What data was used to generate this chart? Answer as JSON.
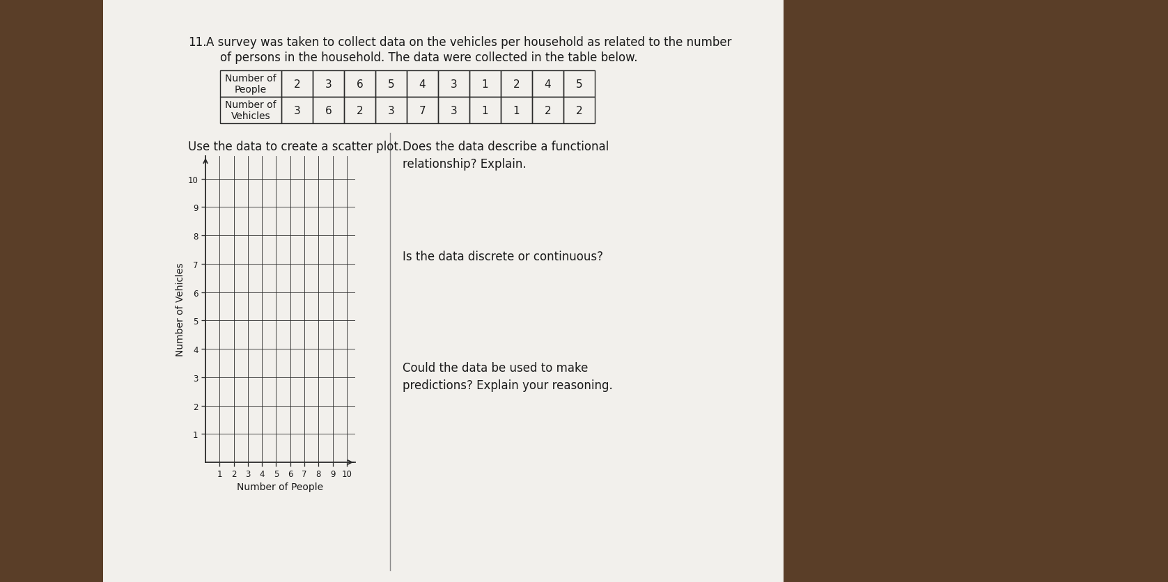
{
  "title_number": "11.",
  "title_line1": "A survey was taken to collect data on the vehicles per household as related to the number",
  "title_line2": "of persons in the household. The data were collected in the table below.",
  "table_row1_label": "Number of\nPeople",
  "table_row2_label": "Number of\nVehicles",
  "table_row1_vals": [
    "2",
    "3",
    "6",
    "5",
    "4",
    "3",
    "1",
    "2",
    "4",
    "5"
  ],
  "table_row2_vals": [
    "3",
    "6",
    "2",
    "3",
    "7",
    "3",
    "1",
    "1",
    "2",
    "2"
  ],
  "scatter_instruction": "Use the data to create a scatter plot.",
  "scatter_xlabel": "Number of People",
  "scatter_ylabel": "Number of Vehicles",
  "scatter_xticks": [
    1,
    2,
    3,
    4,
    5,
    6,
    7,
    8,
    9,
    10
  ],
  "scatter_yticks": [
    1,
    2,
    3,
    4,
    5,
    6,
    7,
    8,
    9,
    10
  ],
  "question1": "Does the data describe a functional\nrelationship? Explain.",
  "question2": "Is the data discrete or continuous?",
  "question3": "Could the data be used to make\npredictions? Explain your reasoning.",
  "wood_color": "#5a3e28",
  "paper_color": "#f2f0ec",
  "text_color": "#1a1a1a",
  "grid_color": "#2a2a2a",
  "table_border_color": "#2a2a2a",
  "divider_color": "#888888"
}
